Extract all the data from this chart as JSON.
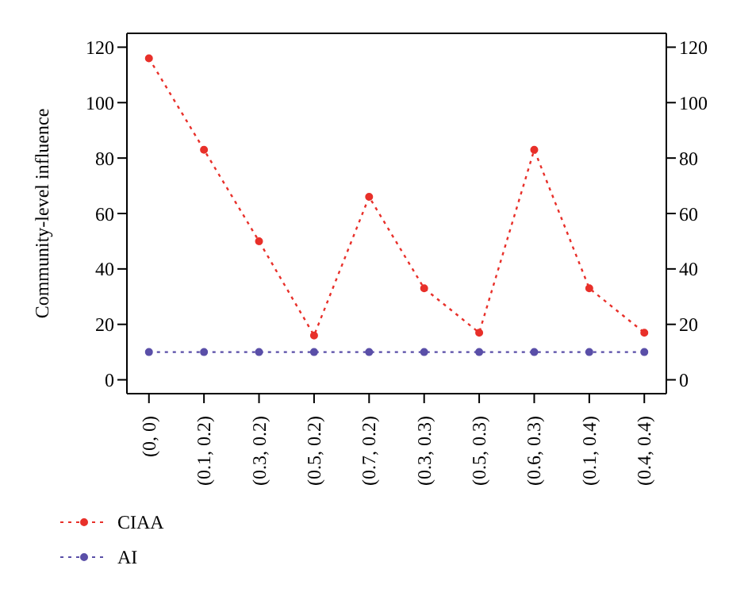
{
  "chart_data": {
    "type": "line",
    "ylabel": "Community-level influence",
    "categories": [
      "(0, 0)",
      "(0.1, 0.2)",
      "(0.3, 0.2)",
      "(0.5, 0.2)",
      "(0.7, 0.2)",
      "(0.3, 0.3)",
      "(0.5, 0.3)",
      "(0.6, 0.3)",
      "(0.1, 0.4)",
      "(0.4, 0.4)"
    ],
    "series": [
      {
        "name": "CIAA",
        "color": "#e8302a",
        "values": [
          116,
          83,
          50,
          16,
          66,
          33,
          17,
          83,
          33,
          17
        ]
      },
      {
        "name": "AI",
        "color": "#5a4fa8",
        "values": [
          10,
          10,
          10,
          10,
          10,
          10,
          10,
          10,
          10,
          10
        ]
      }
    ],
    "ylim": [
      -5,
      125
    ],
    "yticks": [
      0,
      20,
      40,
      60,
      80,
      100,
      120
    ],
    "y2lim": [
      -5,
      125
    ],
    "y2ticks": [
      0,
      20,
      40,
      60,
      80,
      100,
      120
    ],
    "grid": false,
    "legend": "bottom left",
    "marker": "circle",
    "line_style": "dotted"
  }
}
